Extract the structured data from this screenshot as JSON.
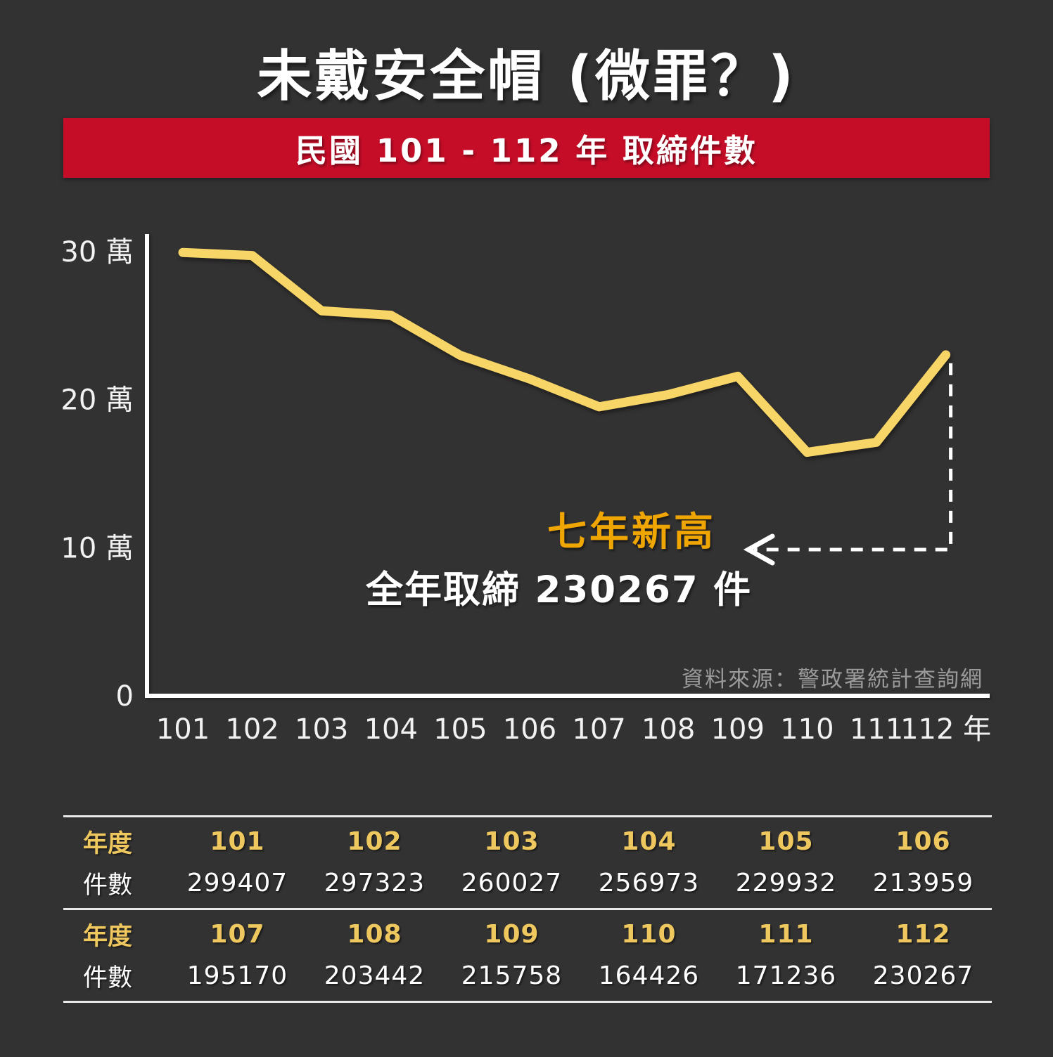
{
  "header": {
    "title": "未戴安全帽 (微罪？)",
    "banner_text": "民國 101 - 112 年 取締件數"
  },
  "colors": {
    "background": "#333233",
    "banner_red": "#c50d28",
    "line_yellow": "#f8d567",
    "gold_accent": "#efa602",
    "table_gold": "#eec85e",
    "axis_white": "#ffffff",
    "arrow_white": "#ffffff",
    "tick_text": "#f2f2f2",
    "source_gray": "#9b9b9b",
    "rule_light": "#e9e9e9",
    "text_white": "#ffffff"
  },
  "chart_data": {
    "type": "line",
    "title": "民國 101 - 112 年 取締件數",
    "x": [
      "101",
      "102",
      "103",
      "104",
      "105",
      "106",
      "107",
      "108",
      "109",
      "110",
      "111",
      "112"
    ],
    "x_suffix_last": "年",
    "values": [
      299407,
      297323,
      260027,
      256973,
      229932,
      213959,
      195170,
      203442,
      215758,
      164426,
      171236,
      230267
    ],
    "xlabel": "",
    "ylabel": "",
    "ylim": [
      0,
      310000
    ],
    "y_ticks": [
      {
        "label": "30 萬",
        "value": 300000
      },
      {
        "label": "20 萬",
        "value": 200000
      },
      {
        "label": "10 萬",
        "value": 100000
      },
      {
        "label": "0",
        "value": 0
      }
    ],
    "grid": false,
    "legend": "none",
    "annotations": [
      {
        "text": "七年新高",
        "style": "gold-highlight"
      },
      {
        "text": "全年取締 230267 件",
        "style": "white-detail"
      },
      {
        "type": "dashed-arrow",
        "from_x": "112",
        "direction": "left"
      }
    ]
  },
  "source_note": "資料來源：警政署統計查詢網",
  "table": {
    "year_label": "年度",
    "count_label": "件數",
    "sections": [
      {
        "years": [
          "101",
          "102",
          "103",
          "104",
          "105",
          "106"
        ],
        "counts": [
          "299407",
          "297323",
          "260027",
          "256973",
          "229932",
          "213959"
        ]
      },
      {
        "years": [
          "107",
          "108",
          "109",
          "110",
          "111",
          "112"
        ],
        "counts": [
          "195170",
          "203442",
          "215758",
          "164426",
          "171236",
          "230267"
        ]
      }
    ]
  }
}
